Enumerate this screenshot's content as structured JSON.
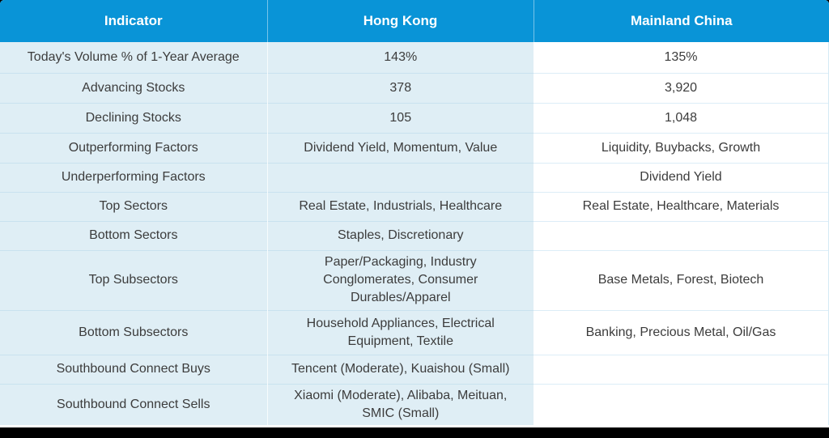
{
  "chart_data": {
    "type": "table",
    "columns": [
      "Indicator",
      "Hong Kong",
      "Mainland China"
    ],
    "rows": [
      [
        "Today's Volume % of 1-Year Average",
        "143%",
        "135%"
      ],
      [
        "Advancing Stocks",
        "378",
        "3,920"
      ],
      [
        "Declining Stocks",
        "105",
        "1,048"
      ],
      [
        "Outperforming Factors",
        "Dividend Yield, Momentum, Value",
        "Liquidity, Buybacks, Growth"
      ],
      [
        "Underperforming Factors",
        "",
        "Dividend Yield"
      ],
      [
        "Top Sectors",
        "Real Estate, Industrials, Healthcare",
        "Real Estate, Healthcare, Materials"
      ],
      [
        "Bottom Sectors",
        "Staples, Discretionary",
        ""
      ],
      [
        "Top Subsectors",
        "Paper/Packaging, Industry Conglomerates, Consumer Durables/Apparel",
        "Base Metals, Forest, Biotech"
      ],
      [
        "Bottom Subsectors",
        "Household Appliances, Electrical Equipment, Textile",
        "Banking, Precious Metal, Oil/Gas"
      ],
      [
        "Southbound Connect Buys",
        "Tencent (Moderate), Kuaishou (Small)",
        ""
      ],
      [
        "Southbound Connect Sells",
        "Xiaomi (Moderate), Alibaba, Meituan, SMIC  (Small)",
        ""
      ]
    ],
    "layout": {
      "header_position": "top",
      "grid": "horizontal-rules",
      "zebra": false
    }
  },
  "colors": {
    "header_bg": "#0994d7",
    "header_text": "#ffffff",
    "shaded_cell_bg": "#dfeef5",
    "white_cell_bg": "#ffffff",
    "body_text": "#3c3c3c",
    "row_rule": "#c9e2ef",
    "bottom_bar": "#000000"
  }
}
